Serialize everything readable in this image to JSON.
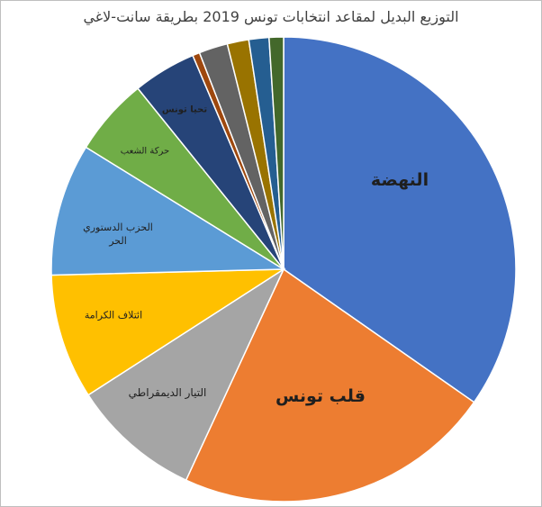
{
  "chart_data": {
    "type": "pie",
    "title": "التوزيع البديل لمقاعد انتخابات تونس 2019 بطريقة سانت-لاغي",
    "categories": [
      "النهضة",
      "قلب تونس",
      "التيار الديمقراطي",
      "ائتلاف الكرامة",
      "الحزب الدستوري الحر",
      "حركة الشعب",
      "تحيا تونس",
      null,
      null,
      null,
      null,
      null
    ],
    "values": [
      34.7,
      22.2,
      9.0,
      8.7,
      9.2,
      5.4,
      4.4,
      0.5,
      2.0,
      1.5,
      1.4,
      1.0
    ],
    "colors": [
      "#4472c4",
      "#ed7d31",
      "#a5a5a5",
      "#ffc000",
      "#5b9bd5",
      "#70ad47",
      "#264478",
      "#9e480e",
      "#636363",
      "#997300",
      "#255e91",
      "#43682b"
    ]
  }
}
